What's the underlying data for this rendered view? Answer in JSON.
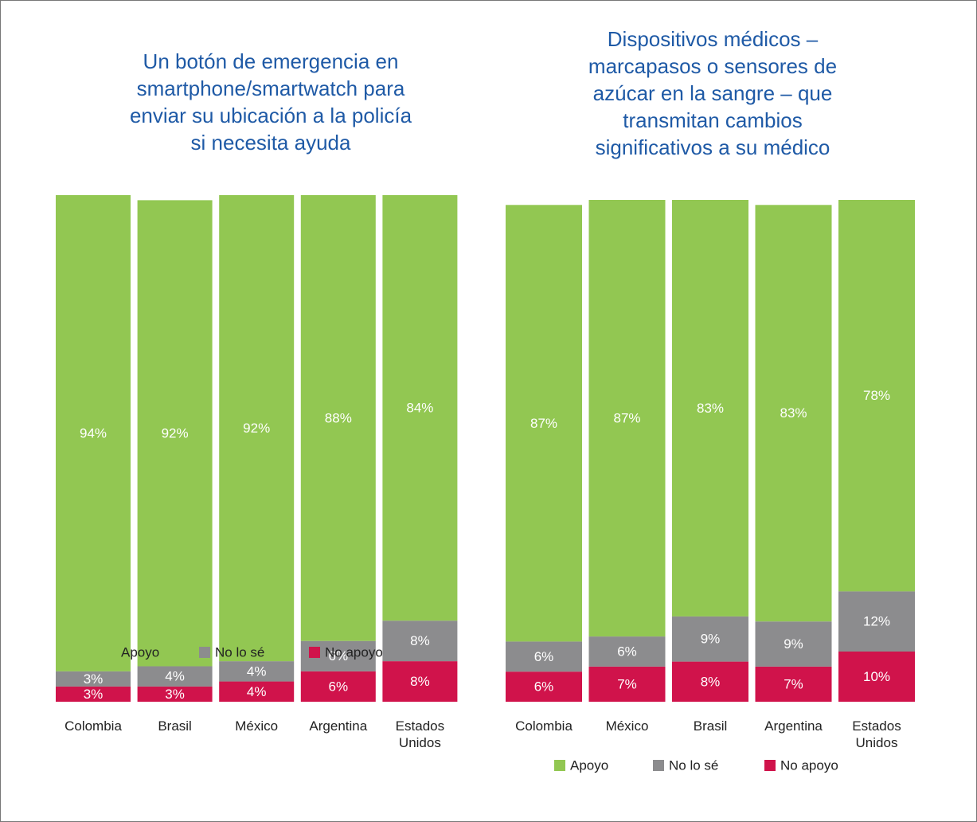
{
  "chart_data": [
    {
      "type": "stacked_bar",
      "title": "Un botón de emergencia en\nsmartphone/smartwatch para\nenviar su ubicación a la policía\nsi necesita ayuda",
      "categories": [
        "Colombia",
        "Brasil",
        "México",
        "Argentina",
        "Estados Unidos"
      ],
      "ylim": [
        0,
        100
      ],
      "series": [
        {
          "name": "Apoyo",
          "color": "#92c752",
          "values": [
            94,
            92,
            92,
            88,
            84
          ],
          "value_labels": [
            "94%",
            "92%",
            "92%",
            "88%",
            "84%"
          ]
        },
        {
          "name": "No lo sé",
          "color": "#8c8c8e",
          "values": [
            3,
            4,
            4,
            6,
            8
          ],
          "value_labels": [
            "3%",
            "4%",
            "4%",
            "6%",
            "8%"
          ]
        },
        {
          "name": "No apoyo",
          "color": "#d0134b",
          "values": [
            3,
            3,
            4,
            6,
            8
          ],
          "value_labels": [
            "3%",
            "3%",
            "4%",
            "6%",
            "8%"
          ]
        }
      ]
    },
    {
      "type": "stacked_bar",
      "title": "Dispositivos médicos –\nmarcapasos o sensores de\nazúcar en la sangre – que\ntransmitan cambios\nsignificativos a su médico",
      "categories": [
        "Colombia",
        "México",
        "Brasil",
        "Argentina",
        "Estados Unidos"
      ],
      "ylim": [
        0,
        100
      ],
      "series": [
        {
          "name": "Apoyo",
          "color": "#92c752",
          "values": [
            87,
            87,
            83,
            83,
            78
          ],
          "value_labels": [
            "87%",
            "87%",
            "83%",
            "83%",
            "78%"
          ]
        },
        {
          "name": "No lo sé",
          "color": "#8c8c8e",
          "values": [
            6,
            6,
            9,
            9,
            12
          ],
          "value_labels": [
            "6%",
            "6%",
            "9%",
            "9%",
            "12%"
          ]
        },
        {
          "name": "No apoyo",
          "color": "#d0134b",
          "values": [
            6,
            7,
            8,
            7,
            10
          ],
          "value_labels": [
            "6%",
            "7%",
            "8%",
            "7%",
            "10%"
          ]
        }
      ]
    }
  ]
}
